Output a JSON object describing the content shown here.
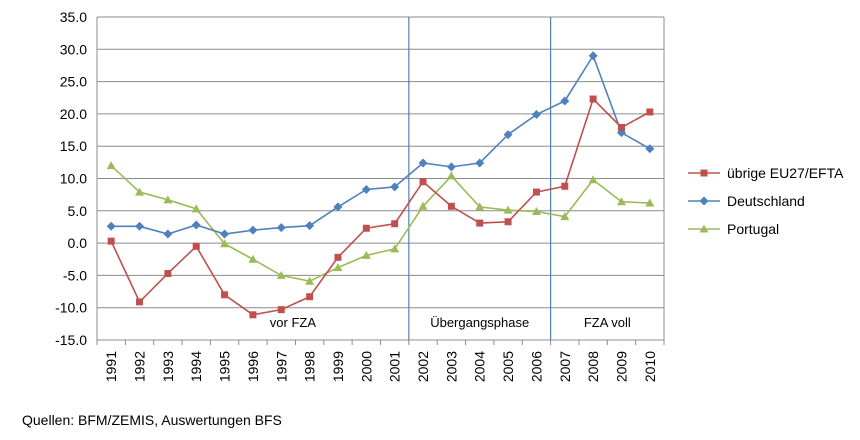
{
  "chart_data": {
    "type": "line",
    "x": [
      1991,
      1992,
      1993,
      1994,
      1995,
      1996,
      1997,
      1998,
      1999,
      2000,
      2001,
      2002,
      2003,
      2004,
      2005,
      2006,
      2007,
      2008,
      2009,
      2010
    ],
    "y_ticks": [
      "35.0",
      "30.0",
      "25.0",
      "20.0",
      "15.0",
      "10.0",
      "5.0",
      "0.0",
      "-5.0",
      "-10.0",
      "-15.0"
    ],
    "ylim": [
      -15,
      35
    ],
    "grid": true,
    "legend_position": "right",
    "series": [
      {
        "name": "übrige EU27/EFTA",
        "color": "#c0504d",
        "marker": "square",
        "values": [
          0.3,
          -9.1,
          -4.7,
          -0.5,
          -8.0,
          -11.1,
          -10.3,
          -8.3,
          -2.2,
          2.3,
          3.0,
          9.5,
          5.7,
          3.1,
          3.3,
          7.9,
          8.8,
          22.3,
          17.9,
          20.3
        ]
      },
      {
        "name": "Deutschland",
        "color": "#4f81bd",
        "marker": "diamond",
        "values": [
          2.6,
          2.6,
          1.4,
          2.8,
          1.4,
          2.0,
          2.4,
          2.7,
          5.6,
          8.3,
          8.7,
          12.4,
          11.8,
          12.4,
          16.8,
          19.9,
          22.0,
          29.0,
          17.1,
          14.6
        ]
      },
      {
        "name": "Portugal",
        "color": "#9bbb59",
        "marker": "triangle",
        "values": [
          12.0,
          7.9,
          6.7,
          5.3,
          -0.1,
          -2.5,
          -5.0,
          -5.9,
          -3.8,
          -1.9,
          -0.9,
          5.7,
          10.4,
          5.6,
          5.1,
          4.9,
          4.1,
          9.8,
          6.4,
          6.2
        ]
      }
    ],
    "phases": [
      {
        "label": "vor FZA",
        "start": 1991,
        "end": 2001
      },
      {
        "label": "Übergangsphase",
        "start": 2002,
        "end": 2006
      },
      {
        "label": "FZA voll",
        "start": 2007,
        "end": 2010
      }
    ]
  },
  "source_note": "Quellen: BFM/ZEMIS, Auswertungen BFS"
}
